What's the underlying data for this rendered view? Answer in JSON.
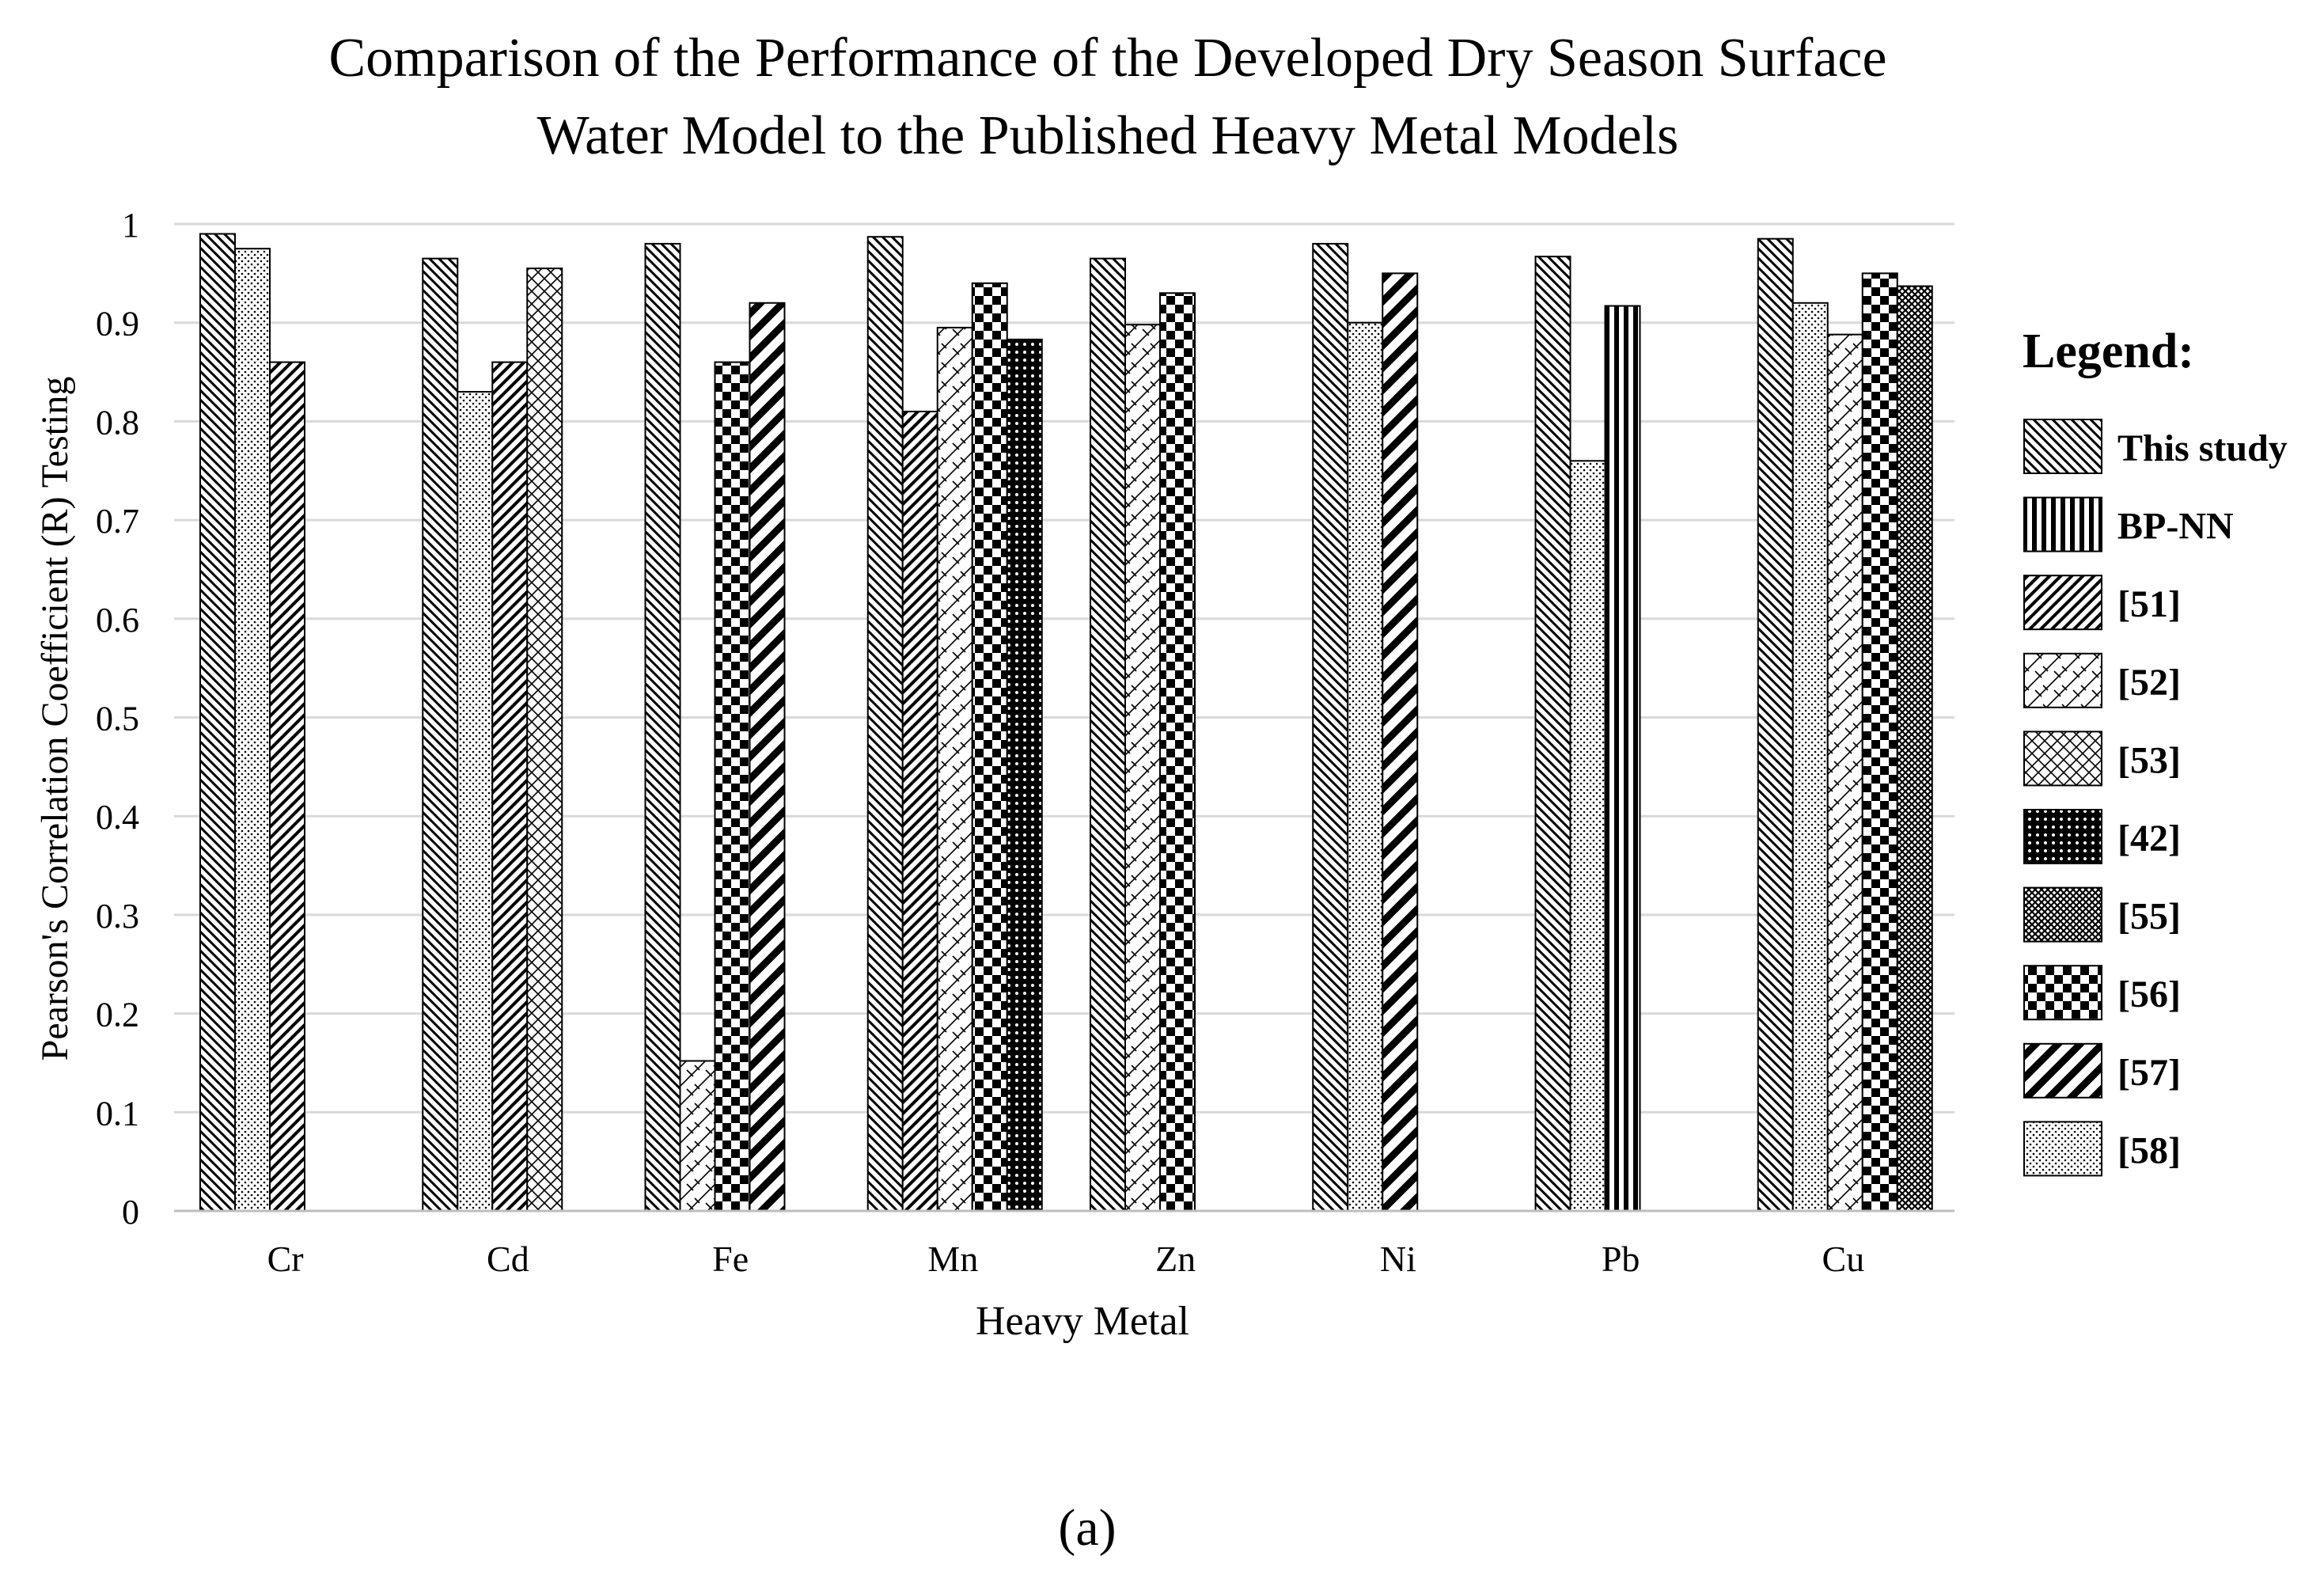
{
  "colors": {
    "ink": "#000000",
    "grid": "#d9d9d9",
    "background": "#ffffff"
  },
  "legend": {
    "heading": "Legend:"
  },
  "caption": "(a)",
  "chart_data": {
    "type": "bar",
    "title_lines": [
      "Comparison of the Performance of the Developed Dry Season Surface",
      "Water Model to the Published Heavy Metal Models"
    ],
    "xlabel": "Heavy Metal",
    "ylabel": "Pearson's Correlation Coefficient (R) Testing",
    "ylim": [
      0,
      1
    ],
    "yticks": [
      0,
      0.1,
      0.2,
      0.3,
      0.4,
      0.5,
      0.6,
      0.7,
      0.8,
      0.9,
      1
    ],
    "ytick_labels": [
      "0",
      "0.1",
      "0.2",
      "0.3",
      "0.4",
      "0.5",
      "0.6",
      "0.7",
      "0.8",
      "0.9",
      "1"
    ],
    "grid": true,
    "legend_position": "right",
    "categories": [
      "Cr",
      "Cd",
      "Fe",
      "Mn",
      "Zn",
      "Ni",
      "Pb",
      "Cu"
    ],
    "series": [
      {
        "name": "This study",
        "pattern": "diag-back-fine",
        "values": [
          0.99,
          0.965,
          0.98,
          0.987,
          0.965,
          0.98,
          0.967,
          0.985
        ]
      },
      {
        "name": "BP-NN",
        "pattern": "vertical",
        "values": [
          null,
          null,
          null,
          null,
          null,
          null,
          0.917,
          null
        ]
      },
      {
        "name": "[51]",
        "pattern": "diag-fwd",
        "values": [
          0.86,
          0.86,
          null,
          0.81,
          null,
          null,
          null,
          null
        ]
      },
      {
        "name": "[52]",
        "pattern": "plaid",
        "values": [
          null,
          null,
          0.152,
          0.895,
          0.898,
          null,
          null,
          0.888
        ]
      },
      {
        "name": "[53]",
        "pattern": "diamond",
        "values": [
          null,
          0.955,
          null,
          null,
          null,
          null,
          null,
          null
        ]
      },
      {
        "name": "[42]",
        "pattern": "dense-grid",
        "values": [
          null,
          null,
          null,
          0.883,
          null,
          null,
          null,
          null
        ]
      },
      {
        "name": "[55]",
        "pattern": "crosshatch",
        "values": [
          null,
          null,
          null,
          null,
          null,
          null,
          null,
          0.937
        ]
      },
      {
        "name": "[56]",
        "pattern": "checker",
        "values": [
          null,
          null,
          0.86,
          0.94,
          0.93,
          null,
          null,
          0.95
        ]
      },
      {
        "name": "[57]",
        "pattern": "diag-fwd-wide",
        "values": [
          null,
          null,
          0.92,
          null,
          null,
          0.95,
          null,
          null
        ]
      },
      {
        "name": "[58]",
        "pattern": "dots",
        "values": [
          0.975,
          0.83,
          null,
          null,
          null,
          0.9,
          0.76,
          0.92
        ]
      }
    ],
    "bar_order": [
      [
        "This study",
        "[58]",
        "[51]"
      ],
      [
        "This study",
        "[58]",
        "[51]",
        "[53]"
      ],
      [
        "This study",
        "[52]",
        "[56]",
        "[57]"
      ],
      [
        "This study",
        "[51]",
        "[52]",
        "[56]",
        "[42]"
      ],
      [
        "This study",
        "[52]",
        "[56]"
      ],
      [
        "This study",
        "[58]",
        "[57]"
      ],
      [
        "This study",
        "[58]",
        "BP-NN"
      ],
      [
        "This study",
        "[58]",
        "[52]",
        "[56]",
        "[55]"
      ]
    ]
  }
}
